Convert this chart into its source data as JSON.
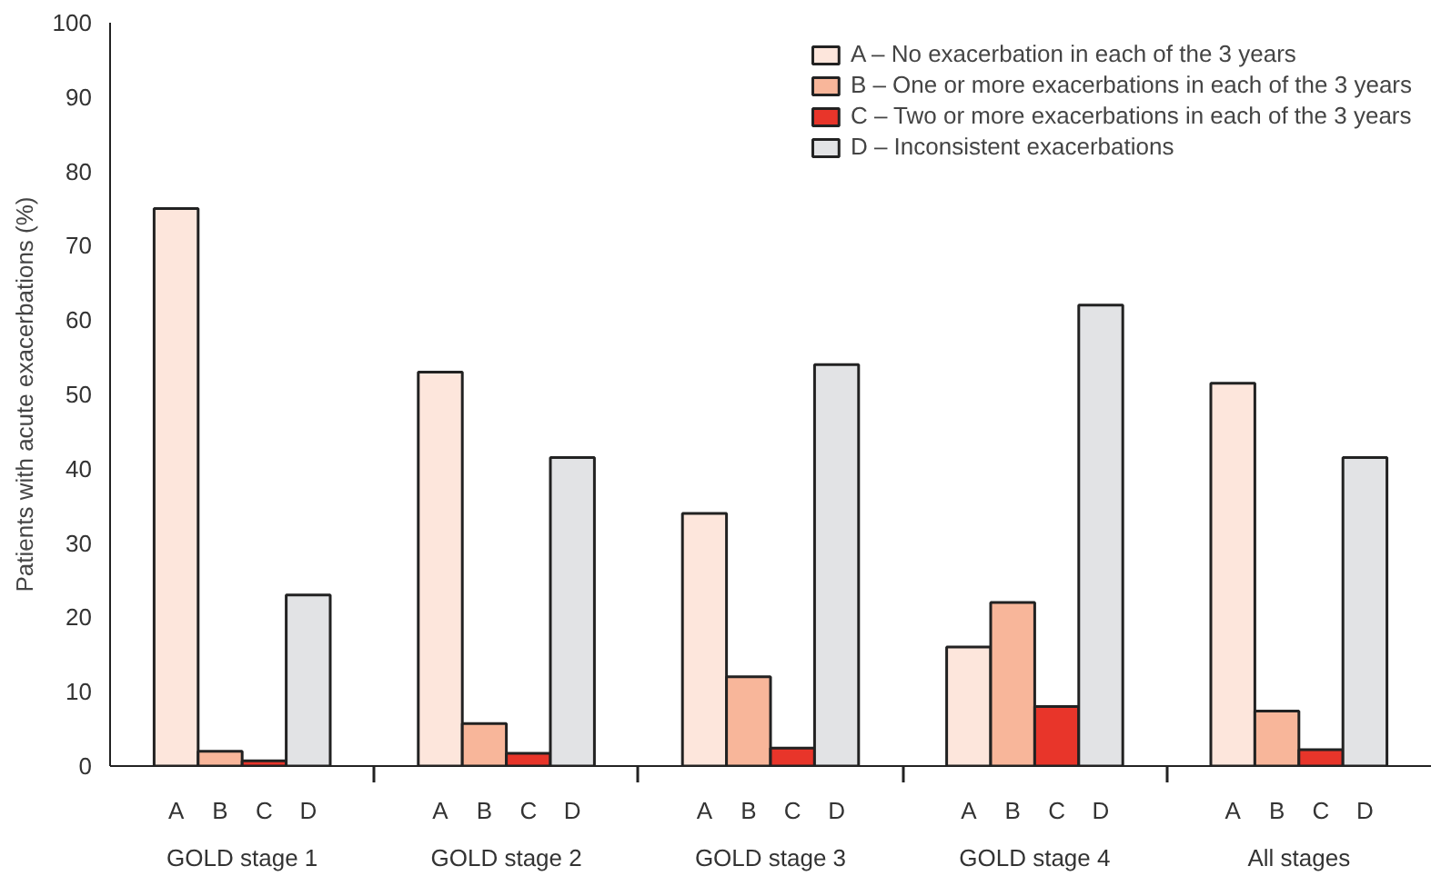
{
  "chart_data": {
    "type": "bar",
    "ylabel": "Patients with acute exacerbations (%)",
    "categories": [
      "A",
      "B",
      "C",
      "D",
      "A",
      "B",
      "C",
      "D",
      "A",
      "B",
      "C",
      "D",
      "A",
      "B",
      "C",
      "D",
      "A",
      "B",
      "C",
      "D"
    ],
    "series": [
      {
        "name": "A – No exacerbation in each of the 3 years",
        "color": "#fde6dc",
        "values": [
          75,
          null,
          null,
          null,
          53,
          null,
          null,
          null,
          34,
          null,
          null,
          null,
          16,
          null,
          null,
          null,
          51.5,
          null,
          null,
          null
        ]
      },
      {
        "name": "B – One or more exacerbations in each of the 3 years",
        "color": "#f8b69a",
        "values": [
          null,
          2,
          null,
          null,
          null,
          5.7,
          null,
          null,
          null,
          12,
          null,
          null,
          null,
          22,
          null,
          null,
          null,
          7.4,
          null,
          null
        ]
      },
      {
        "name": "C – Two or more exacerbations in each of the 3 years",
        "color": "#e8352a",
        "values": [
          null,
          null,
          0.7,
          null,
          null,
          null,
          1.7,
          null,
          null,
          null,
          2.4,
          null,
          null,
          null,
          8,
          null,
          null,
          null,
          2.2,
          null
        ]
      },
      {
        "name": "D – Inconsistent exacerbations",
        "color": "#e2e3e5",
        "values": [
          null,
          null,
          null,
          23,
          null,
          null,
          null,
          41.5,
          null,
          null,
          null,
          54,
          null,
          null,
          null,
          62,
          null,
          null,
          null,
          41.5
        ]
      }
    ],
    "annotations": [
      "GOLD stage 1",
      "GOLD stage 2",
      "GOLD stage 3",
      "GOLD stage 4",
      "All stages"
    ],
    "ylim": [
      0,
      100
    ],
    "yticks": [
      0,
      10,
      20,
      30,
      40,
      50,
      60,
      70,
      80,
      90,
      100
    ],
    "grid": false,
    "legend": "top right"
  }
}
